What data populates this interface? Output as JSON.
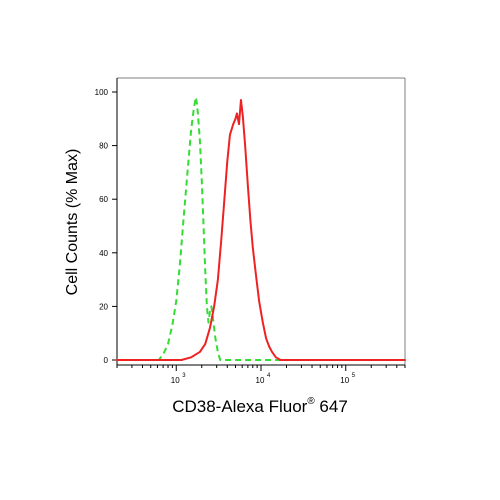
{
  "chart_data": {
    "type": "line",
    "xlabel": {
      "prefix": "CD38-Alexa Fluor",
      "superscript": "®",
      "suffix": " 647"
    },
    "ylabel": "Cell Counts (% Max)",
    "x_scale": "log",
    "xlim": [
      200,
      500000
    ],
    "ylim": [
      0,
      100
    ],
    "y_ticks": [
      0,
      20,
      40,
      60,
      80,
      100
    ],
    "y_tick_labels": [
      "0",
      "20",
      "40",
      "60",
      "80",
      "100"
    ],
    "x_major_ticks": [
      {
        "value": 1000,
        "base": "10",
        "exp": "3"
      },
      {
        "value": 10000,
        "base": "10",
        "exp": "4"
      },
      {
        "value": 100000,
        "base": "10",
        "exp": "5"
      }
    ],
    "grid": false,
    "legend": "none",
    "series": [
      {
        "color": "#33dd33",
        "style": "dashed",
        "points": [
          [
            200,
            0
          ],
          [
            620,
            0
          ],
          [
            700,
            2
          ],
          [
            800,
            6
          ],
          [
            900,
            13
          ],
          [
            1000,
            22
          ],
          [
            1100,
            35
          ],
          [
            1200,
            50
          ],
          [
            1300,
            63
          ],
          [
            1400,
            75
          ],
          [
            1500,
            86
          ],
          [
            1600,
            93
          ],
          [
            1700,
            98
          ],
          [
            1750,
            96
          ],
          [
            1800,
            92
          ],
          [
            1900,
            82
          ],
          [
            2000,
            67
          ],
          [
            2100,
            50
          ],
          [
            2200,
            33
          ],
          [
            2300,
            20
          ],
          [
            2400,
            14
          ],
          [
            2500,
            18
          ],
          [
            2600,
            20
          ],
          [
            2700,
            16
          ],
          [
            2900,
            8
          ],
          [
            3100,
            3
          ],
          [
            3300,
            0
          ],
          [
            500000,
            0
          ]
        ]
      },
      {
        "color": "#ee2222",
        "style": "solid",
        "points": [
          [
            200,
            0
          ],
          [
            1150,
            0
          ],
          [
            1500,
            1
          ],
          [
            1900,
            3
          ],
          [
            2200,
            6
          ],
          [
            2500,
            12
          ],
          [
            2800,
            20
          ],
          [
            3100,
            30
          ],
          [
            3400,
            45
          ],
          [
            3700,
            60
          ],
          [
            4000,
            74
          ],
          [
            4300,
            84
          ],
          [
            4700,
            88
          ],
          [
            5000,
            90
          ],
          [
            5200,
            92
          ],
          [
            5500,
            88
          ],
          [
            5800,
            97
          ],
          [
            6100,
            91
          ],
          [
            6500,
            80
          ],
          [
            7000,
            65
          ],
          [
            7500,
            52
          ],
          [
            8000,
            42
          ],
          [
            8700,
            32
          ],
          [
            9500,
            22
          ],
          [
            10500,
            14
          ],
          [
            11500,
            8
          ],
          [
            12500,
            5
          ],
          [
            13500,
            3
          ],
          [
            15000,
            1
          ],
          [
            17000,
            0
          ],
          [
            500000,
            0
          ]
        ]
      }
    ]
  }
}
